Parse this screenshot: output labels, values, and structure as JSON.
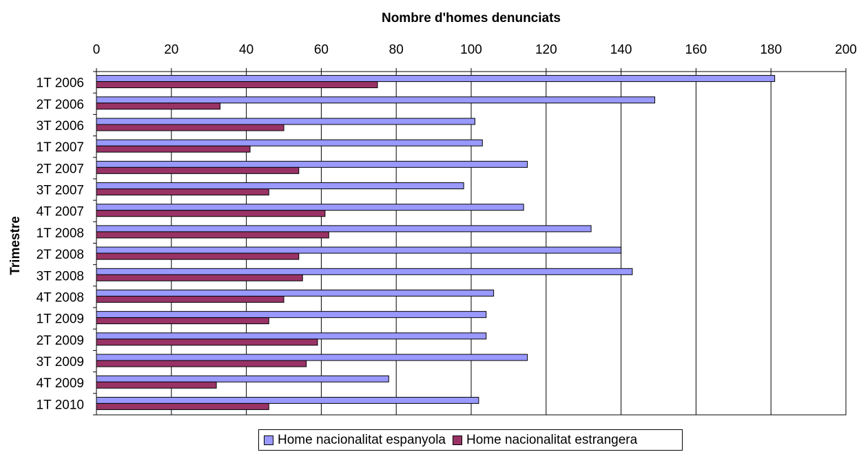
{
  "chart_data": {
    "type": "bar",
    "orientation": "horizontal",
    "title": "Nombre d'homes denunciats",
    "ylabel": "Trimestre",
    "xlim": [
      0,
      200
    ],
    "xticks": [
      0,
      20,
      40,
      60,
      80,
      100,
      120,
      140,
      160,
      180,
      200
    ],
    "grid": true,
    "legend_position": "bottom",
    "categories": [
      "1T 2006",
      "2T 2006",
      "3T 2006",
      "1T 2007",
      "2T 2007",
      "3T 2007",
      "4T 2007",
      "1T 2008",
      "2T 2008",
      "3T 2008",
      "4T 2008",
      "1T 2009",
      "2T 2009",
      "3T 2009",
      "4T 2009",
      "1T 2010"
    ],
    "series": [
      {
        "name": "Home nacionalitat espanyola",
        "color": "#9999ff",
        "values": [
          181,
          149,
          101,
          103,
          115,
          98,
          114,
          132,
          140,
          143,
          106,
          104,
          104,
          115,
          78,
          102
        ]
      },
      {
        "name": "Home nacionalitat estrangera",
        "color": "#993366",
        "values": [
          75,
          33,
          50,
          41,
          54,
          46,
          61,
          62,
          54,
          55,
          50,
          46,
          59,
          56,
          32,
          46
        ]
      }
    ]
  }
}
